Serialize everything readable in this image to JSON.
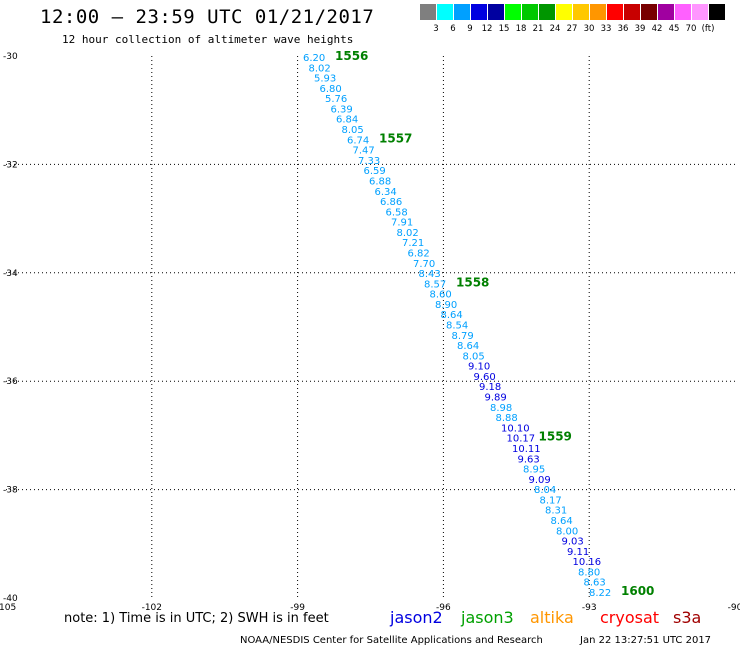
{
  "title": "12:00 – 23:59 UTC 01/21/2017",
  "subtitle": "12 hour collection of altimeter wave heights",
  "colorbar": {
    "colors": [
      "#7f7f7f",
      "#00ffff",
      "#00a0ff",
      "#0000e0",
      "#0000a0",
      "#00ff00",
      "#00c800",
      "#009600",
      "#ffff00",
      "#ffc800",
      "#ff9600",
      "#ff0000",
      "#c80000",
      "#780000",
      "#a000a0",
      "#ff60ff",
      "#ff96ff",
      "#000000"
    ],
    "labels": [
      "3",
      "6",
      "9",
      "12",
      "15",
      "18",
      "21",
      "24",
      "27",
      "30",
      "33",
      "36",
      "39",
      "42",
      "45",
      "70",
      "(ft)"
    ]
  },
  "map": {
    "lon_ticks": [
      "-105",
      "-102",
      "-99",
      "-96",
      "-93",
      "-90"
    ],
    "lat_ticks": [
      "-30",
      "-32",
      "-34",
      "-36",
      "-38",
      "-40"
    ],
    "lon_range": [
      -105,
      -90
    ],
    "lat_range": [
      -30,
      -40
    ]
  },
  "track": [
    {
      "v": "6.20",
      "c": "#00a0ff"
    },
    {
      "v": "8.02",
      "c": "#00a0ff"
    },
    {
      "v": "5.93",
      "c": "#00a0ff"
    },
    {
      "v": "6.80",
      "c": "#00a0ff"
    },
    {
      "v": "5.76",
      "c": "#00a0ff"
    },
    {
      "v": "6.39",
      "c": "#00a0ff"
    },
    {
      "v": "6.84",
      "c": "#00a0ff"
    },
    {
      "v": "8.05",
      "c": "#00a0ff"
    },
    {
      "v": "6.74",
      "c": "#00a0ff"
    },
    {
      "v": "7.47",
      "c": "#00a0ff"
    },
    {
      "v": "7.33",
      "c": "#00a0ff"
    },
    {
      "v": "6.59",
      "c": "#00a0ff"
    },
    {
      "v": "6.88",
      "c": "#00a0ff"
    },
    {
      "v": "6.34",
      "c": "#00a0ff"
    },
    {
      "v": "6.86",
      "c": "#00a0ff"
    },
    {
      "v": "6.58",
      "c": "#00a0ff"
    },
    {
      "v": "7.91",
      "c": "#00a0ff"
    },
    {
      "v": "8.02",
      "c": "#00a0ff"
    },
    {
      "v": "7.21",
      "c": "#00a0ff"
    },
    {
      "v": "6.82",
      "c": "#00a0ff"
    },
    {
      "v": "7.70",
      "c": "#00a0ff"
    },
    {
      "v": "8.43",
      "c": "#00a0ff"
    },
    {
      "v": "8.57",
      "c": "#00a0ff"
    },
    {
      "v": "8.60",
      "c": "#00a0ff"
    },
    {
      "v": "8.90",
      "c": "#00a0ff"
    },
    {
      "v": "8.64",
      "c": "#00a0ff"
    },
    {
      "v": "8.54",
      "c": "#00a0ff"
    },
    {
      "v": "8.79",
      "c": "#00a0ff"
    },
    {
      "v": "8.64",
      "c": "#00a0ff"
    },
    {
      "v": "8.05",
      "c": "#00a0ff"
    },
    {
      "v": "9.10",
      "c": "#0000e0"
    },
    {
      "v": "9.60",
      "c": "#0000e0"
    },
    {
      "v": "9.18",
      "c": "#0000e0"
    },
    {
      "v": "9.89",
      "c": "#0000e0"
    },
    {
      "v": "8.98",
      "c": "#00a0ff"
    },
    {
      "v": "8.88",
      "c": "#00a0ff"
    },
    {
      "v": "10.10",
      "c": "#0000e0"
    },
    {
      "v": "10.17",
      "c": "#0000e0"
    },
    {
      "v": "10.11",
      "c": "#0000e0"
    },
    {
      "v": "9.63",
      "c": "#0000e0"
    },
    {
      "v": "8.95",
      "c": "#00a0ff"
    },
    {
      "v": "9.09",
      "c": "#0000e0"
    },
    {
      "v": "8.04",
      "c": "#00a0ff"
    },
    {
      "v": "8.17",
      "c": "#00a0ff"
    },
    {
      "v": "8.31",
      "c": "#00a0ff"
    },
    {
      "v": "8.64",
      "c": "#00a0ff"
    },
    {
      "v": "8.00",
      "c": "#00a0ff"
    },
    {
      "v": "9.03",
      "c": "#0000e0"
    },
    {
      "v": "9.11",
      "c": "#0000e0"
    },
    {
      "v": "10.16",
      "c": "#0000e0"
    },
    {
      "v": "8.80",
      "c": "#00a0ff"
    },
    {
      "v": "8.63",
      "c": "#00a0ff"
    },
    {
      "v": "8.22",
      "c": "#00a0ff"
    }
  ],
  "time_marks": [
    {
      "label": "1556",
      "index": 0
    },
    {
      "label": "1557",
      "index": 8
    },
    {
      "label": "1558",
      "index": 22
    },
    {
      "label": "1559",
      "index": 37
    },
    {
      "label": "1600",
      "index": 52
    }
  ],
  "note": "note: 1) Time is in UTC; 2) SWH is in feet",
  "satellites": [
    {
      "name": "jason2",
      "color": "#0000e0"
    },
    {
      "name": "jason3",
      "color": "#00a000"
    },
    {
      "name": "altika",
      "color": "#ff9600"
    },
    {
      "name": "cryosat",
      "color": "#ff0000"
    },
    {
      "name": "s3a",
      "color": "#a00000"
    }
  ],
  "footer": {
    "left": "NOAA/NESDIS Center for Satellite Applications and Research",
    "right": "Jan 22 13:27:51 UTC 2017"
  }
}
